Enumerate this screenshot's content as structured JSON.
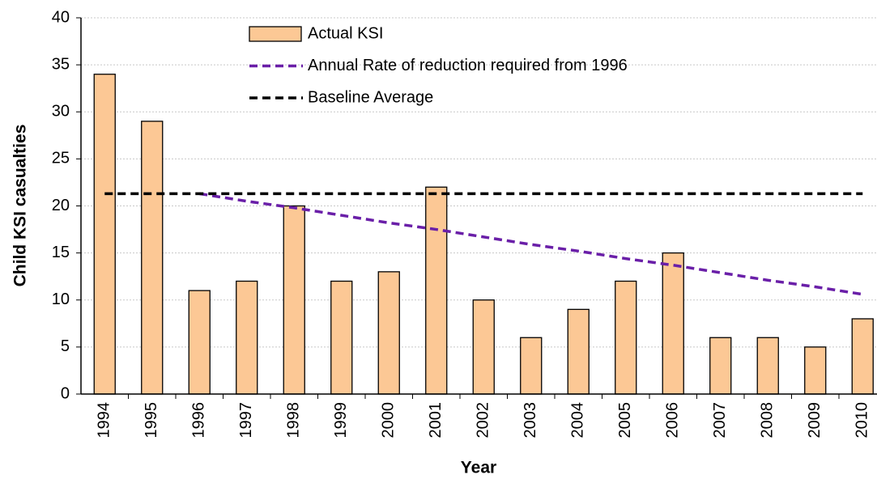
{
  "chart_data": {
    "type": "bar",
    "x_label": "Year",
    "y_label": "Child KSI casualties",
    "categories": [
      "1994",
      "1995",
      "1996",
      "1997",
      "1998",
      "1999",
      "2000",
      "2001",
      "2002",
      "2003",
      "2004",
      "2005",
      "2006",
      "2007",
      "2008",
      "2009",
      "2010"
    ],
    "series": [
      {
        "name": "Actual KSI",
        "type": "bar",
        "color": "#fcc895",
        "values": [
          34,
          29,
          11,
          12,
          20,
          12,
          13,
          22,
          10,
          6,
          9,
          12,
          15,
          6,
          6,
          5,
          8
        ]
      },
      {
        "name": "Annual Rate of reduction required from 1996",
        "type": "line",
        "color": "#6a1fa8",
        "values": [
          null,
          null,
          21.3,
          20.5,
          19.8,
          19.0,
          18.2,
          17.5,
          16.7,
          15.9,
          15.2,
          14.4,
          13.7,
          12.9,
          12.1,
          11.4,
          10.6
        ]
      },
      {
        "name": "Baseline Average",
        "type": "line",
        "color": "#000000",
        "values": [
          21.3,
          21.3,
          21.3,
          21.3,
          21.3,
          21.3,
          21.3,
          21.3,
          21.3,
          21.3,
          21.3,
          21.3,
          21.3,
          21.3,
          21.3,
          21.3,
          21.3
        ]
      }
    ],
    "ylim": [
      0,
      40
    ],
    "yticks": [
      0,
      5,
      10,
      15,
      20,
      25,
      30,
      35,
      40
    ],
    "grid": true,
    "legend": "top"
  }
}
